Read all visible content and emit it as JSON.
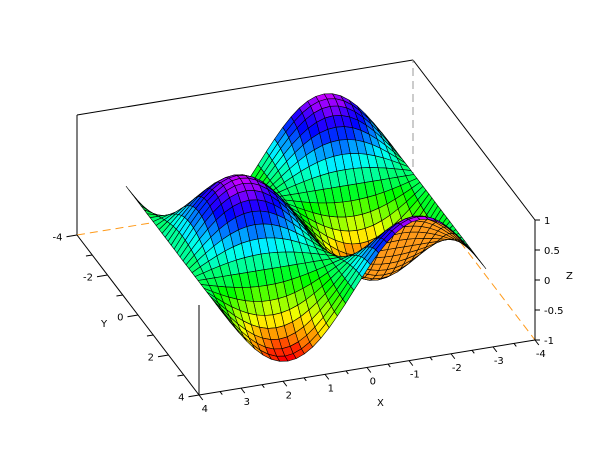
{
  "chart_data": {
    "type": "surface",
    "title": "",
    "xlabel": "X",
    "ylabel": "Y",
    "zlabel": "Z",
    "xlim": [
      -4,
      4
    ],
    "ylim": [
      -4,
      4
    ],
    "zlim": [
      -1,
      1
    ],
    "x_ticks": [
      "4",
      "3",
      "2",
      "1",
      "0",
      "-1",
      "-2",
      "-3",
      "-4"
    ],
    "x_tick_values": [
      4,
      3,
      2,
      1,
      0,
      -1,
      -2,
      -3,
      -4
    ],
    "y_ticks": [
      "-4",
      "-2",
      "0",
      "2",
      "4"
    ],
    "y_tick_values": [
      -4,
      -2,
      0,
      2,
      4
    ],
    "z_ticks": [
      "1",
      "0.5",
      "0",
      "-0.5",
      "-1"
    ],
    "z_tick_values": [
      1,
      0.5,
      0,
      -0.5,
      -1
    ],
    "surface": {
      "x_domain": [
        -3.14159,
        3.14159
      ],
      "y_domain": [
        -3.14159,
        3.14159
      ],
      "z": "sin(x)*cos(y)",
      "colormap": "hsv (red = low, purple = high)",
      "backface_color": "#ff9a1a",
      "edge_color": "#000000"
    },
    "grid": false,
    "box_color": "#000000",
    "hidden_axis_color": "#ff9a1a"
  }
}
